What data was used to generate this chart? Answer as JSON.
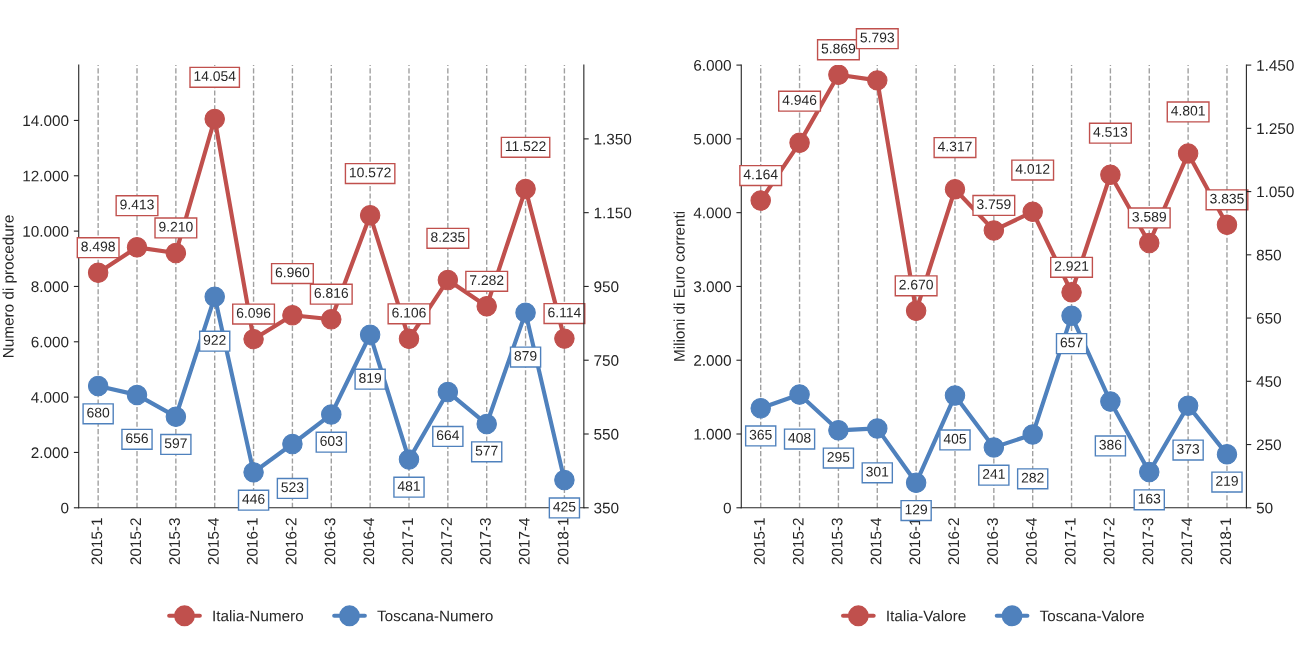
{
  "chart_data": [
    {
      "type": "line",
      "categories": [
        "2015-1",
        "2015-2",
        "2015-3",
        "2015-4",
        "2016-1",
        "2016-2",
        "2016-3",
        "2016-4",
        "2017-1",
        "2017-2",
        "2017-3",
        "2017-4",
        "2018-1"
      ],
      "ylabel": "Numero di procedure",
      "ylim": [
        0,
        16000
      ],
      "yticks": [
        0,
        {
          "value": 2000,
          "label": "2.000"
        },
        {
          "value": 4000,
          "label": "4.000"
        },
        {
          "value": 6000,
          "label": "6.000"
        },
        {
          "value": 8000,
          "label": "8.000"
        },
        {
          "value": 10000,
          "label": "10.000"
        },
        {
          "value": 12000,
          "label": "12.000"
        },
        {
          "value": 14000,
          "label": "14.000"
        }
      ],
      "y2lim": [
        350,
        1550
      ],
      "y2ticks": [
        350,
        550,
        750,
        950,
        {
          "value": 1150,
          "label": "1.150"
        },
        {
          "value": 1350,
          "label": "1.350"
        }
      ],
      "grid": "x",
      "legend": "bottom",
      "marker": "circle",
      "line_style": "solid",
      "series": [
        {
          "name": "Italia-Numero",
          "color": "#c0504d",
          "values": [
            8498,
            9413,
            9210,
            14054,
            6096,
            6960,
            6816,
            10572,
            6106,
            8235,
            7282,
            11522,
            6114
          ],
          "value_labels": [
            "8.498",
            "9.413",
            "9.210",
            "14.054",
            "6.096",
            "6.960",
            "6.816",
            "10.572",
            "6.106",
            "8.235",
            "7.282",
            "11.522",
            "6.114"
          ]
        },
        {
          "name": "Toscana-Numero",
          "color": "#4f81bd",
          "axis": "y2",
          "values": [
            680,
            656,
            597,
            922,
            446,
            523,
            603,
            819,
            481,
            664,
            577,
            879,
            425
          ],
          "value_labels": [
            "680",
            "656",
            "597",
            "922",
            "446",
            "523",
            "603",
            "819",
            "481",
            "664",
            "577",
            "879",
            "425"
          ]
        }
      ]
    },
    {
      "type": "line",
      "categories": [
        "2015-1",
        "2015-2",
        "2015-3",
        "2015-4",
        "2016-1",
        "2016-2",
        "2016-3",
        "2016-4",
        "2017-1",
        "2017-2",
        "2017-3",
        "2017-4",
        "2018-1"
      ],
      "ylabel": "Milioni di Euro correnti",
      "ylim": [
        0,
        6000
      ],
      "yticks": [
        0,
        {
          "value": 1000,
          "label": "1.000"
        },
        {
          "value": 2000,
          "label": "2.000"
        },
        {
          "value": 3000,
          "label": "3.000"
        },
        {
          "value": 4000,
          "label": "4.000"
        },
        {
          "value": 5000,
          "label": "5.000"
        },
        {
          "value": 6000,
          "label": "6.000"
        }
      ],
      "y2lim": [
        50,
        1450
      ],
      "y2ticks": [
        50,
        250,
        450,
        650,
        850,
        {
          "value": 1050,
          "label": "1.050"
        },
        {
          "value": 1250,
          "label": "1.250"
        },
        {
          "value": 1450,
          "label": "1.450"
        }
      ],
      "grid": "x",
      "legend": "bottom",
      "marker": "circle",
      "line_style": "solid",
      "series": [
        {
          "name": "Italia-Valore",
          "color": "#c0504d",
          "values": [
            4164,
            4946,
            5869,
            5793,
            2670,
            4317,
            3759,
            4012,
            2921,
            4513,
            3589,
            4801,
            3835
          ],
          "value_labels": [
            "4.164",
            "4.946",
            "5.869",
            "5.793",
            "2.670",
            "4.317",
            "3.759",
            "4.012",
            "2.921",
            "4.513",
            "3.589",
            "4.801",
            "3.835"
          ]
        },
        {
          "name": "Toscana-Valore",
          "color": "#4f81bd",
          "axis": "y2",
          "values": [
            365,
            408,
            295,
            301,
            129,
            405,
            241,
            282,
            657,
            386,
            163,
            373,
            219
          ],
          "value_labels": [
            "365",
            "408",
            "295",
            "301",
            "129",
            "405",
            "241",
            "282",
            "657",
            "386",
            "163",
            "373",
            "219"
          ]
        }
      ]
    }
  ]
}
